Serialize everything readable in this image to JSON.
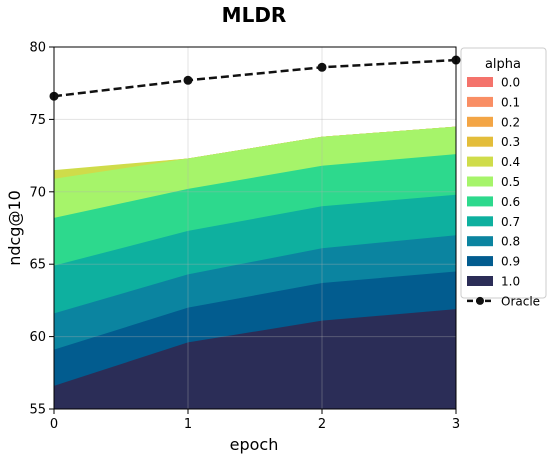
{
  "chart_data": {
    "type": "area",
    "title": "MLDR",
    "xlabel": "epoch",
    "ylabel": "ndcg@10",
    "x": [
      0,
      1,
      2,
      3
    ],
    "xlim": [
      0,
      3
    ],
    "ylim": [
      55,
      80
    ],
    "xticks": [
      0,
      1,
      2,
      3
    ],
    "yticks": [
      55,
      60,
      65,
      70,
      75,
      80
    ],
    "grid": true,
    "legend": {
      "title": "alpha",
      "placement": "right"
    },
    "series": [
      {
        "name": "0.0",
        "color": "#f4736b",
        "values": [
          71.1,
          72.3,
          73.8,
          74.5
        ]
      },
      {
        "name": "0.1",
        "color": "#f98e64",
        "values": [
          71.2,
          72.3,
          73.8,
          74.5
        ]
      },
      {
        "name": "0.2",
        "color": "#f3a545",
        "values": [
          71.3,
          72.3,
          73.8,
          74.5
        ]
      },
      {
        "name": "0.3",
        "color": "#e3bd3a",
        "values": [
          71.4,
          72.3,
          73.8,
          74.5
        ]
      },
      {
        "name": "0.4",
        "color": "#cfdc4a",
        "values": [
          71.5,
          72.3,
          73.8,
          74.5
        ]
      },
      {
        "name": "0.5",
        "color": "#a6f46a",
        "values": [
          70.9,
          72.3,
          73.8,
          74.5
        ]
      },
      {
        "name": "0.6",
        "color": "#2dd98d",
        "values": [
          68.2,
          70.2,
          71.8,
          72.6
        ]
      },
      {
        "name": "0.7",
        "color": "#0eb09f",
        "values": [
          64.9,
          67.3,
          69.0,
          69.8
        ]
      },
      {
        "name": "0.8",
        "color": "#0b84a0",
        "values": [
          61.6,
          64.3,
          66.1,
          67.0
        ]
      },
      {
        "name": "0.9",
        "color": "#025c8f",
        "values": [
          59.1,
          62.0,
          63.7,
          64.5
        ]
      },
      {
        "name": "1.0",
        "color": "#2b2d57",
        "values": [
          56.6,
          59.6,
          61.1,
          61.9
        ]
      }
    ],
    "oracle": {
      "name": "Oracle",
      "color": "#111111",
      "values": [
        76.6,
        77.7,
        78.6,
        79.1
      ]
    }
  }
}
